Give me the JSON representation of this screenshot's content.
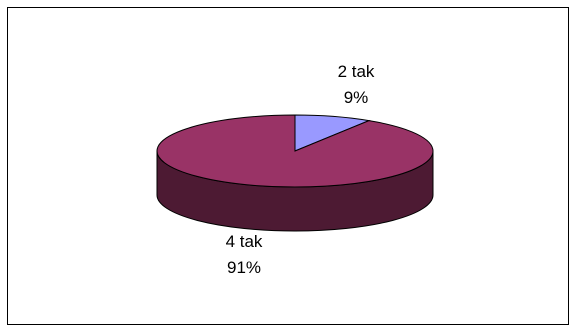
{
  "chart_data": {
    "type": "pie",
    "style": "3d-tilted",
    "categories": [
      "2 tak",
      "4 tak"
    ],
    "values": [
      9,
      91
    ],
    "value_labels": [
      "9%",
      "91%"
    ],
    "colors": [
      "#9999ff",
      "#993366"
    ],
    "side_colors": [
      "#55558f",
      "#4d1a33"
    ],
    "legend": "none",
    "title": ""
  }
}
